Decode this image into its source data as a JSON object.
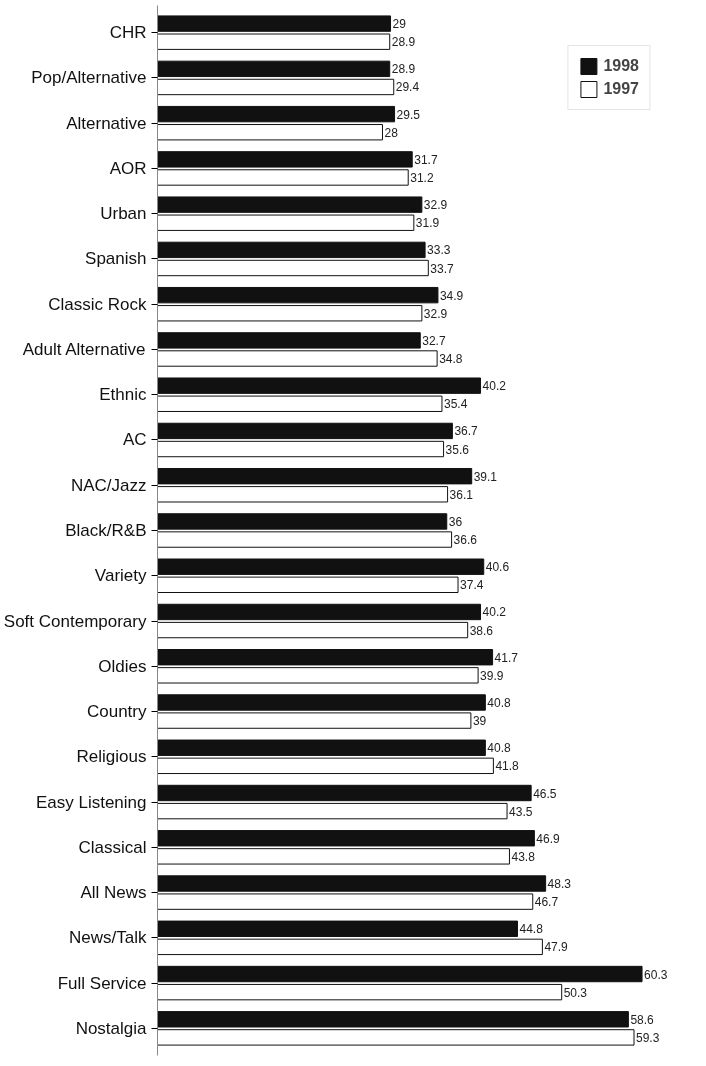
{
  "chart_data": {
    "type": "bar",
    "orientation": "horizontal",
    "categories": [
      "CHR",
      "Pop/Alternative",
      "Alternative",
      "AOR",
      "Urban",
      "Spanish",
      "Classic Rock",
      "Adult Alternative",
      "Ethnic",
      "AC",
      "NAC/Jazz",
      "Black/R&B",
      "Variety",
      "Soft Contemporary",
      "Oldies",
      "Country",
      "Religious",
      "Easy Listening",
      "Classical",
      "All News",
      "News/Talk",
      "Full Service",
      "Nostalgia"
    ],
    "series": [
      {
        "name": "1998",
        "color": "#111111",
        "values": [
          29,
          28.9,
          29.5,
          31.7,
          32.9,
          33.3,
          34.9,
          32.7,
          40.2,
          36.7,
          39.1,
          36,
          40.6,
          40.2,
          41.7,
          40.8,
          40.8,
          46.5,
          46.9,
          48.3,
          44.8,
          60.3,
          58.6
        ]
      },
      {
        "name": "1997",
        "color": "#ffffff",
        "values": [
          28.9,
          29.4,
          28,
          31.2,
          31.9,
          33.7,
          32.9,
          34.8,
          35.4,
          35.6,
          36.1,
          36.6,
          37.4,
          38.6,
          39.9,
          39,
          41.8,
          43.5,
          43.8,
          46.7,
          47.9,
          50.3,
          59.3
        ]
      }
    ],
    "tick_labels": "y",
    "data_labels": true,
    "legend": "top right",
    "grid": false
  }
}
